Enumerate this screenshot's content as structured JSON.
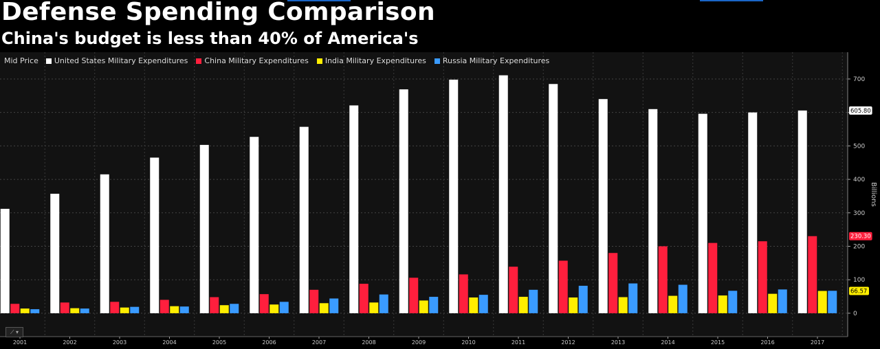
{
  "header": {
    "title": "Defense Spending Comparison",
    "subtitle": "China's budget is less than 40% of America's"
  },
  "legend": {
    "prefix": "Mid Price",
    "items": [
      {
        "label": "United States Military Expenditures",
        "color": "#ffffff"
      },
      {
        "label": "China Military Expenditures",
        "color": "#ff1f3d"
      },
      {
        "label": "India Military Expenditures",
        "color": "#ffee00"
      },
      {
        "label": "Russia Military Expenditures",
        "color": "#3a9bff"
      }
    ]
  },
  "chart_data": {
    "type": "bar",
    "categories": [
      "2001",
      "2002",
      "2003",
      "2004",
      "2005",
      "2006",
      "2007",
      "2008",
      "2009",
      "2010",
      "2011",
      "2012",
      "2013",
      "2014",
      "2015",
      "2016",
      "2017"
    ],
    "series": [
      {
        "name": "United States Military Expenditures",
        "color": "#ffffff",
        "values": [
          312,
          357,
          415,
          465,
          503,
          527,
          557,
          621,
          669,
          698,
          711,
          685,
          640,
          610,
          596,
          600,
          605.8
        ]
      },
      {
        "name": "China Military Expenditures",
        "color": "#ff1f3d",
        "values": [
          28,
          32,
          34,
          40,
          48,
          57,
          70,
          88,
          106,
          116,
          139,
          157,
          180,
          200,
          210,
          215,
          230.3
        ]
      },
      {
        "name": "India Military Expenditures",
        "color": "#ffee00",
        "values": [
          14,
          15,
          17,
          21,
          24,
          26,
          30,
          32,
          38,
          47,
          49,
          47,
          48,
          52,
          53,
          58,
          66.57
        ]
      },
      {
        "name": "Russia Military Expenditures",
        "color": "#3a9bff",
        "values": [
          12,
          14,
          19,
          20,
          28,
          34,
          44,
          56,
          49,
          55,
          70,
          82,
          89,
          85,
          67,
          71,
          67
        ]
      }
    ],
    "ylabel": "Billions",
    "ylim": [
      -70,
      780
    ],
    "yticks": [
      0,
      100,
      200,
      300,
      400,
      500,
      600,
      700
    ],
    "grid": true,
    "legend_position": "top-left",
    "last_value_labels": [
      {
        "text": "605.80",
        "value": 605.8,
        "bg": "#ffffff",
        "fg": "#000000"
      },
      {
        "text": "230.30",
        "value": 230.3,
        "bg": "#ff1f3d",
        "fg": "#ffffff"
      },
      {
        "text": "66.57",
        "value": 66.57,
        "bg": "#ffee00",
        "fg": "#000000"
      }
    ]
  }
}
